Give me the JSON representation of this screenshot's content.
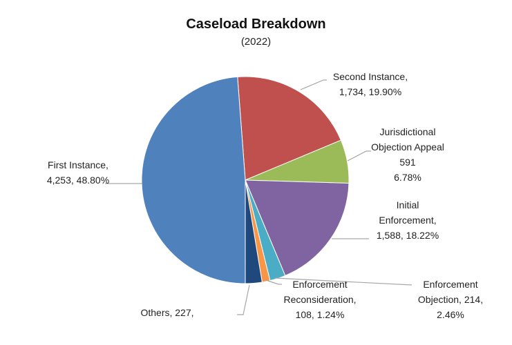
{
  "chart_data": {
    "type": "pie",
    "title": "Caseload Breakdown",
    "subtitle": "(2022)",
    "slices": [
      {
        "name": "Second Instance",
        "value": 1734,
        "percent": "19.90%",
        "color": "#C0504D",
        "label_lines": [
          "Second Instance,",
          "1,734, 19.90%"
        ]
      },
      {
        "name": "Jurisdictional Objection Appeal",
        "value": 591,
        "percent": "6.78%",
        "color": "#9BBB59",
        "label_lines": [
          "Jurisdictional",
          "Objection Appeal",
          "591",
          "6.78%"
        ]
      },
      {
        "name": "Initial Enforcement",
        "value": 1588,
        "percent": "18.22%",
        "color": "#8064A2",
        "label_lines": [
          "Initial",
          "Enforcement,",
          "1,588, 18.22%"
        ]
      },
      {
        "name": "Enforcement Objection",
        "value": 214,
        "percent": "2.46%",
        "color": "#4BACC6",
        "label_lines": [
          "Enforcement",
          "Objection, 214,",
          "2.46%"
        ]
      },
      {
        "name": "Enforcement Reconsideration",
        "value": 108,
        "percent": "1.24%",
        "color": "#F79646",
        "label_lines": [
          "Enforcement",
          "Reconsideration,",
          "108, 1.24%"
        ]
      },
      {
        "name": "Others",
        "value": 227,
        "percent": "",
        "color": "#1F497D",
        "label_lines": [
          "Others, 227,"
        ]
      },
      {
        "name": "First Instance",
        "value": 4253,
        "percent": "48.80%",
        "color": "#4F81BD",
        "label_lines": [
          "First Instance,",
          "4,253, 48.80%"
        ]
      }
    ]
  }
}
